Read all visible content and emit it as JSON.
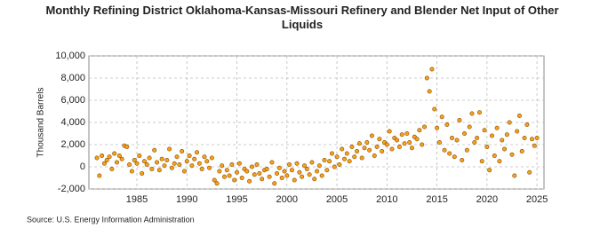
{
  "chart_data": {
    "type": "scatter",
    "title": "Monthly Refining District Oklahoma-Kansas-Missouri Refinery and Blender Net Input of Other Liquids",
    "y_label": "Thousand Barrels",
    "source": "Source: U.S. Energy Information Administration",
    "color": "#f5a21a",
    "edge_color": "#8a4a00",
    "grid": true,
    "xlim": [
      1980.2,
      2025.7
    ],
    "xticks": [
      1985,
      1990,
      1995,
      2000,
      2005,
      2010,
      2015,
      2020,
      2025
    ],
    "ylim": [
      -2000,
      10000
    ],
    "yticks": [
      {
        "value": -2000,
        "label": "-2,000"
      },
      0,
      {
        "value": 2000,
        "label": "2,000"
      },
      {
        "value": 4000,
        "label": "4,000"
      },
      {
        "value": 6000,
        "label": "6,000"
      },
      {
        "value": 8000,
        "label": "8,000"
      },
      {
        "value": 10000,
        "label": "10,000"
      }
    ],
    "x": [
      1981,
      1981.25,
      1981.5,
      1981.75,
      1982,
      1982.25,
      1982.5,
      1982.75,
      1983,
      1983.25,
      1983.5,
      1983.75,
      1984,
      1984.25,
      1984.5,
      1984.75,
      1985,
      1985.25,
      1985.5,
      1985.75,
      1986,
      1986.25,
      1986.5,
      1986.75,
      1987,
      1987.25,
      1987.5,
      1987.75,
      1988,
      1988.25,
      1988.5,
      1988.75,
      1989,
      1989.25,
      1989.5,
      1989.75,
      1990,
      1990.25,
      1990.5,
      1990.75,
      1991,
      1991.25,
      1991.5,
      1991.75,
      1992,
      1992.25,
      1992.5,
      1992.75,
      1993,
      1993.25,
      1993.5,
      1993.75,
      1994,
      1994.25,
      1994.5,
      1994.75,
      1995,
      1995.25,
      1995.5,
      1995.75,
      1996,
      1996.25,
      1996.5,
      1996.75,
      1997,
      1997.25,
      1997.5,
      1997.75,
      1998,
      1998.25,
      1998.5,
      1998.75,
      1999,
      1999.25,
      1999.5,
      1999.75,
      2000,
      2000.25,
      2000.5,
      2000.75,
      2001,
      2001.25,
      2001.5,
      2001.75,
      2002,
      2002.25,
      2002.5,
      2002.75,
      2003,
      2003.25,
      2003.5,
      2003.75,
      2004,
      2004.25,
      2004.5,
      2004.75,
      2005,
      2005.25,
      2005.5,
      2005.75,
      2006,
      2006.25,
      2006.5,
      2006.75,
      2007,
      2007.25,
      2007.5,
      2007.75,
      2008,
      2008.25,
      2008.5,
      2008.75,
      2009,
      2009.25,
      2009.5,
      2009.75,
      2010,
      2010.25,
      2010.5,
      2010.75,
      2011,
      2011.25,
      2011.5,
      2011.75,
      2012,
      2012.25,
      2012.5,
      2012.75,
      2013,
      2013.25,
      2013.5,
      2013.75,
      2014,
      2014.25,
      2014.5,
      2014.75,
      2015,
      2015.25,
      2015.5,
      2015.75,
      2016,
      2016.25,
      2016.5,
      2016.75,
      2017,
      2017.25,
      2017.5,
      2017.75,
      2018,
      2018.25,
      2018.5,
      2018.75,
      2019,
      2019.25,
      2019.5,
      2019.75,
      2020,
      2020.25,
      2020.5,
      2020.75,
      2021,
      2021.25,
      2021.5,
      2021.75,
      2022,
      2022.25,
      2022.5,
      2022.75,
      2023,
      2023.25,
      2023.5,
      2023.75,
      2024,
      2024.25,
      2024.5,
      2024.75,
      2025
    ],
    "values": [
      800,
      -800,
      1000,
      300,
      600,
      900,
      -200,
      1200,
      400,
      1000,
      700,
      1900,
      1800,
      200,
      -400,
      600,
      300,
      1000,
      -600,
      500,
      200,
      800,
      -200,
      1500,
      400,
      -300,
      700,
      100,
      600,
      1600,
      -100,
      300,
      900,
      200,
      1400,
      -400,
      500,
      1000,
      100,
      700,
      1300,
      300,
      -200,
      900,
      500,
      -100,
      800,
      -1200,
      -1500,
      -400,
      100,
      -900,
      -300,
      -800,
      200,
      -1200,
      -500,
      300,
      -1000,
      -200,
      -400,
      -1300,
      0,
      -700,
      200,
      -600,
      -1100,
      -300,
      -200,
      -900,
      400,
      -1500,
      -600,
      -100,
      -1000,
      -400,
      -800,
      200,
      -300,
      -1200,
      300,
      -500,
      -900,
      100,
      -200,
      -700,
      400,
      -1100,
      -400,
      100,
      -800,
      600,
      -300,
      500,
      1200,
      0,
      900,
      200,
      1600,
      700,
      1200,
      500,
      1800,
      900,
      1400,
      2100,
      800,
      1700,
      2200,
      1500,
      2800,
      1000,
      1800,
      2500,
      1400,
      2200,
      2000,
      3200,
      1600,
      2600,
      2400,
      1800,
      2900,
      2100,
      3000,
      2200,
      1700,
      2700,
      2500,
      3300,
      2000,
      3600,
      8000,
      6800,
      8800,
      5200,
      3500,
      2200,
      4500,
      1500,
      3800,
      1200,
      2600,
      900,
      2400,
      4200,
      600,
      3000,
      1500,
      3600,
      4800,
      2200,
      2600,
      4900,
      500,
      3300,
      1800,
      -300,
      2800,
      1000,
      3500,
      500,
      2400,
      1600,
      2900,
      4000,
      1100,
      -800,
      3200,
      4600,
      1400,
      2600,
      3800,
      -500,
      2500,
      1900,
      2600
    ]
  }
}
